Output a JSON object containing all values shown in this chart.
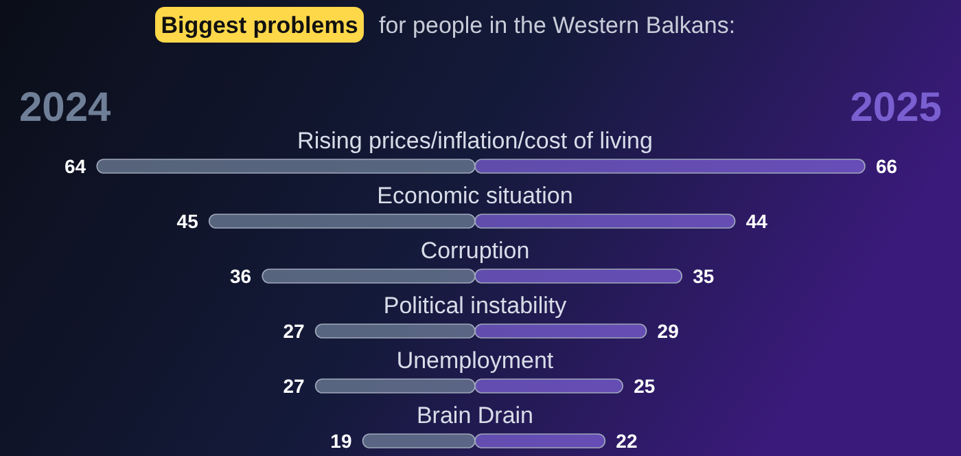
{
  "chart_data": [
    {
      "type": "bar",
      "orientation": "horizontal",
      "title": "Biggest problems",
      "subtitle": "for people in the Western Balkans:",
      "categories": [
        "Rising prices/inflation/cost of living",
        "Economic situation",
        "Corruption",
        "Political instability",
        "Unemployment",
        "Brain Drain"
      ],
      "series": [
        {
          "name": "2024",
          "color": "#6f7f98",
          "values": [
            64,
            45,
            36,
            27,
            27,
            19
          ]
        }
      ],
      "data_labels": true,
      "legend": "top left"
    },
    {
      "type": "bar",
      "orientation": "horizontal",
      "series": [
        {
          "name": "2025",
          "color": "#7a5fd0",
          "values": [
            66,
            44,
            35,
            29,
            25,
            22
          ]
        }
      ],
      "data_labels": true,
      "legend": "top right"
    }
  ]
}
